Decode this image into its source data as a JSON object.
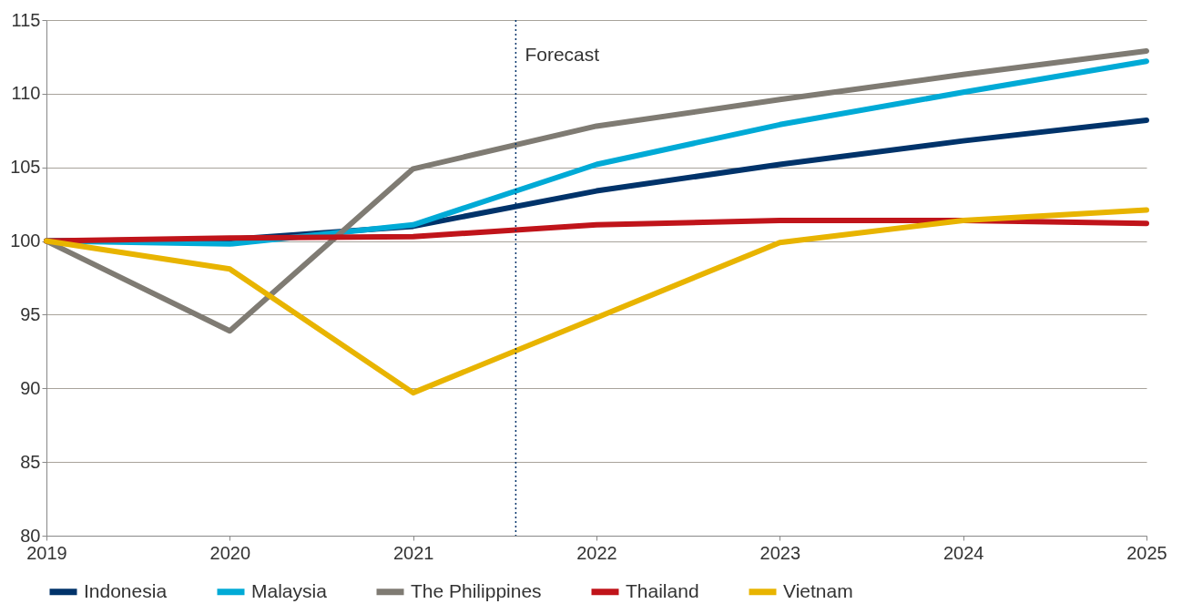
{
  "chart_data": {
    "type": "line",
    "x": [
      2019,
      2020,
      2021,
      2022,
      2023,
      2024,
      2025
    ],
    "xlim": [
      2019,
      2025
    ],
    "xticks": [
      2019,
      2020,
      2021,
      2022,
      2023,
      2024,
      2025
    ],
    "ylim": [
      80,
      115
    ],
    "yticks": [
      80,
      85,
      90,
      95,
      100,
      105,
      110,
      115
    ],
    "grid": "y",
    "legend": "bottom",
    "marker": "none",
    "line_style": "solid",
    "series": [
      {
        "name": "Indonesia",
        "color": "#00336a",
        "values": [
          100,
          100.1,
          101,
          103.4,
          105.2,
          106.8,
          108.2
        ]
      },
      {
        "name": "Malaysia",
        "color": "#00aad6",
        "values": [
          100,
          99.8,
          101.1,
          105.2,
          107.9,
          110.1,
          112.2
        ]
      },
      {
        "name": "The Philippines",
        "color": "#7f7b73",
        "values": [
          100,
          93.9,
          104.9,
          107.8,
          109.6,
          111.3,
          112.9
        ]
      },
      {
        "name": "Thailand",
        "color": "#c0141a",
        "values": [
          100,
          100.2,
          100.3,
          101.1,
          101.4,
          101.4,
          101.2
        ]
      },
      {
        "name": "Vietnam",
        "color": "#e8b400",
        "values": [
          100,
          98.1,
          89.7,
          94.8,
          99.9,
          101.4,
          102.1
        ]
      }
    ],
    "ref_lines": [
      {
        "axis": "x",
        "value": 2021.56,
        "label": "Forecast",
        "color": "#00336a",
        "line_style": "dotted"
      }
    ]
  }
}
